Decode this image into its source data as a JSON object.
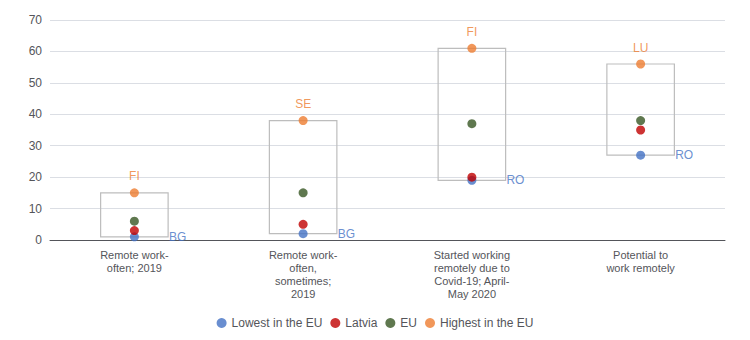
{
  "chart_data": {
    "type": "scatter",
    "categories": [
      "Remote work-\noften; 2019",
      "Remote work-\noften,\nsometimes;\n2019",
      "Started working\nremotely due to\nCovid-19; April-\nMay 2020",
      "Potential to\nwork remotely"
    ],
    "series": [
      {
        "name": "Lowest in the EU",
        "color": "#4472C4",
        "values": [
          1,
          2,
          19,
          27
        ],
        "annotations": [
          "BG",
          "BG",
          "RO",
          "RO"
        ]
      },
      {
        "name": "Latvia",
        "color": "#C00000",
        "values": [
          3,
          5,
          20,
          35
        ]
      },
      {
        "name": "EU",
        "color": "#375623",
        "values": [
          6,
          15,
          37,
          38
        ]
      },
      {
        "name": "Highest in the EU",
        "color": "#ED7D31",
        "values": [
          15,
          38,
          61,
          56
        ],
        "annotations": [
          "FI",
          "SE",
          "FI",
          "LU"
        ]
      }
    ],
    "ylim": [
      0,
      70
    ],
    "yticks": [
      0,
      10,
      20,
      30,
      40,
      50,
      60,
      70
    ],
    "grid": true,
    "legend": "bottom"
  }
}
